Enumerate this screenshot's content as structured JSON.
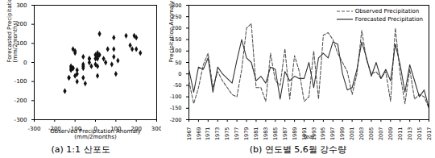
{
  "chart_data": [
    {
      "type": "scatter",
      "title": "(a) 1:1 산포도",
      "x_label": "Observed Precipitation Anomaly\n(mm/2months)",
      "y_label": "Forecasted Precipitation Anomaly\n(mm/2months)",
      "x": [
        -30,
        -130,
        -60,
        40,
        90,
        -60,
        10,
        -30,
        -60,
        -90,
        -100,
        20,
        200,
        220,
        -60,
        -60,
        -120,
        90,
        -30,
        -50,
        110,
        -110,
        80,
        10,
        -120,
        -100,
        100,
        -110,
        170,
        180,
        150,
        90,
        50,
        10,
        -90,
        0,
        190,
        60,
        0,
        10,
        -20,
        10,
        -120,
        200,
        0,
        -130,
        20,
        -110,
        -90,
        -100,
        -150
      ],
      "y": [
        20,
        -80,
        30,
        20,
        70,
        -80,
        30,
        0,
        -20,
        -40,
        60,
        150,
        70,
        50,
        -30,
        -10,
        -40,
        30,
        20,
        -110,
        10,
        -30,
        -10,
        -20,
        -20,
        50,
        -60,
        70,
        90,
        70,
        140,
        130,
        0,
        -70,
        -60,
        20,
        140,
        70,
        -10,
        50,
        -20,
        20,
        -30,
        130,
        40,
        -80,
        40,
        -30,
        -100,
        -70,
        -150
      ],
      "xlim": [
        -300,
        300
      ],
      "ylim": [
        -300,
        300
      ],
      "xticks": [
        -300,
        -200,
        -100,
        0,
        100,
        200,
        300
      ],
      "yticks": [
        -300,
        -200,
        -100,
        0,
        100,
        200,
        300
      ],
      "color": "#111111",
      "marker": "diamond",
      "grid": false
    },
    {
      "type": "line",
      "title": "(b) 연도별 5,6월 강수량",
      "x_label": "Year",
      "y_label": "Precipitation Anomaly (mm/2months)",
      "x": [
        1967,
        1968,
        1969,
        1970,
        1971,
        1972,
        1973,
        1974,
        1975,
        1976,
        1977,
        1978,
        1979,
        1980,
        1981,
        1982,
        1983,
        1984,
        1985,
        1986,
        1987,
        1988,
        1989,
        1990,
        1991,
        1992,
        1993,
        1994,
        1995,
        1996,
        1997,
        1998,
        1999,
        2000,
        2001,
        2002,
        2003,
        2004,
        2005,
        2006,
        2007,
        2008,
        2009,
        2010,
        2011,
        2012,
        2013,
        2014,
        2015,
        2016,
        2017
      ],
      "series": [
        {
          "name": "Observed Precipitation",
          "color": "#555555",
          "line_style": "dashed",
          "values": [
            -30,
            -130,
            -60,
            40,
            90,
            -60,
            10,
            -30,
            -60,
            -90,
            -100,
            20,
            200,
            220,
            -60,
            -60,
            -120,
            90,
            -30,
            -50,
            110,
            -110,
            80,
            10,
            -120,
            -100,
            100,
            -110,
            170,
            180,
            150,
            90,
            50,
            10,
            -90,
            0,
            190,
            60,
            0,
            10,
            -20,
            10,
            -120,
            200,
            0,
            -130,
            20,
            -110,
            -90,
            -100,
            -150
          ]
        },
        {
          "name": "Forecasted Precipitation",
          "color": "#333333",
          "line_style": "solid",
          "values": [
            20,
            -80,
            30,
            20,
            70,
            -80,
            30,
            0,
            -20,
            -40,
            60,
            150,
            70,
            50,
            -30,
            -10,
            -40,
            30,
            20,
            -110,
            10,
            -30,
            -10,
            -20,
            -20,
            50,
            -60,
            70,
            90,
            70,
            140,
            130,
            0,
            -70,
            -60,
            20,
            140,
            70,
            -10,
            50,
            -20,
            20,
            -30,
            130,
            40,
            -80,
            40,
            -30,
            -100,
            -70,
            -150
          ]
        }
      ],
      "xlim": [
        1967,
        2017
      ],
      "ylim": [
        -200,
        300
      ],
      "xticks": [
        1967,
        1969,
        1971,
        1973,
        1975,
        1977,
        1979,
        1981,
        1983,
        1985,
        1987,
        1989,
        1991,
        1993,
        1995,
        1997,
        1999,
        2001,
        2003,
        2005,
        2007,
        2009,
        2011,
        2013,
        2015,
        2017
      ],
      "yticks": [
        -200,
        -150,
        -100,
        -50,
        0,
        50,
        100,
        150,
        200,
        250,
        300
      ],
      "legend": "upper right",
      "grid": false
    }
  ]
}
